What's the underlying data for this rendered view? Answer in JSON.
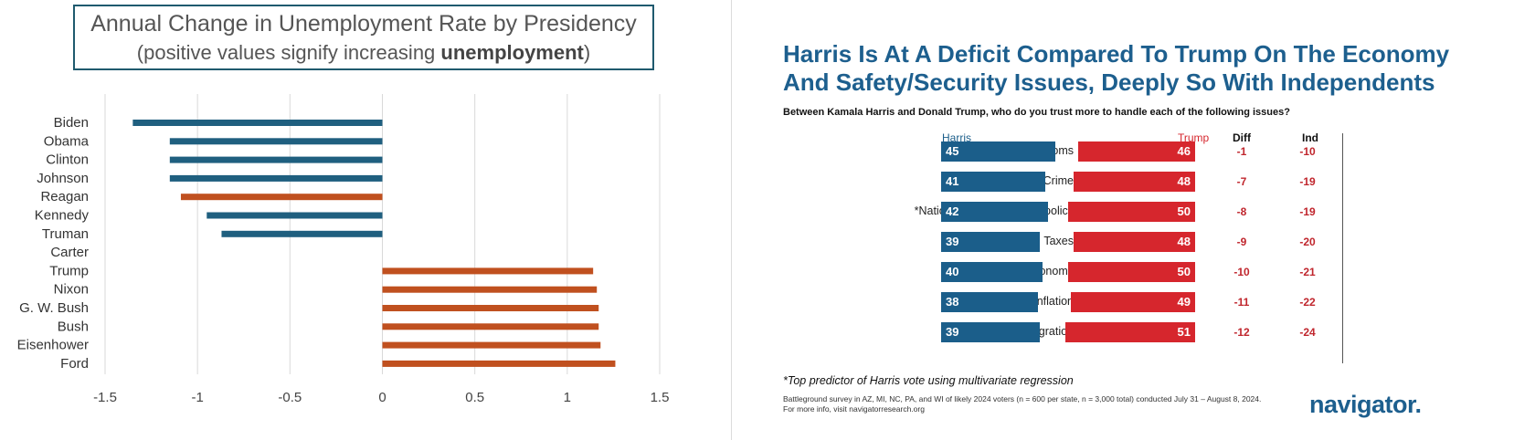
{
  "chart_data": [
    {
      "type": "bar",
      "orientation": "horizontal",
      "title": "Annual Change in Unemployment Rate by Presidency",
      "subtitle_prefix": "(positive values signify increasing ",
      "subtitle_emphasis": "unemployment",
      "subtitle_suffix": ")",
      "categories": [
        "Biden",
        "Obama",
        "Clinton",
        "Johnson",
        "Reagan",
        "Kennedy",
        "Truman",
        "Carter",
        "Trump",
        "Nixon",
        "G. W. Bush",
        "Bush",
        "Eisenhower",
        "Ford"
      ],
      "values": [
        -1.35,
        -1.15,
        -1.15,
        -1.15,
        -1.09,
        -0.95,
        -0.87,
        0,
        1.14,
        1.16,
        1.17,
        1.17,
        1.18,
        1.26
      ],
      "parties": [
        "D",
        "D",
        "D",
        "D",
        "R",
        "D",
        "D",
        "D",
        "R",
        "R",
        "R",
        "R",
        "R",
        "R"
      ],
      "party_colors": {
        "D": "#1f5f7f",
        "R": "#c0501f"
      },
      "xlim": [
        -1.5,
        1.5
      ],
      "xticks": [
        -1.5,
        -1,
        -0.5,
        0,
        0.5,
        1,
        1.5
      ],
      "xtick_labels": [
        "-1.5",
        "-1",
        "-0.5",
        "0",
        "0.5",
        "1",
        "1.5"
      ],
      "grid": true,
      "xlabel": "",
      "ylabel": ""
    },
    {
      "type": "bar",
      "orientation": "horizontal",
      "title": "Harris Is At A Deficit Compared To Trump On The Economy And Safety/Security Issues, Deeply So With Independents",
      "question": "Between Kamala Harris and Donald Trump, who do you trust more to handle each of the following issues?",
      "columns": {
        "harris": "Harris",
        "trump": "Trump",
        "diff": "Diff",
        "ind": "Ind"
      },
      "categories": [
        "Our rights and freedoms",
        "Crime",
        "*National security/foreign policy",
        "Taxes",
        "*The economy",
        "Inflation",
        "Immigration"
      ],
      "series": [
        {
          "name": "Harris",
          "color": "#1b5e8a",
          "values": [
            45,
            41,
            42,
            39,
            40,
            38,
            39
          ]
        },
        {
          "name": "Trump",
          "color": "#d6262d",
          "values": [
            46,
            48,
            50,
            48,
            50,
            49,
            51
          ]
        }
      ],
      "diff": [
        "-1",
        "-7",
        "-8",
        "-9",
        "-10",
        "-11",
        "-12"
      ],
      "ind": [
        "-10",
        "-19",
        "-19",
        "-20",
        "-21",
        "-22",
        "-24"
      ],
      "footnote": "*Top predictor of Harris vote using multivariate regression",
      "source_line1": "Battleground survey in AZ, MI, NC, PA, and WI of likely 2024 voters (n = 600 per state, n = 3,000 total) conducted July 31 – August 8, 2024.",
      "source_line2": "For more info, visit navigatorresearch.org",
      "logo": "navigator."
    }
  ]
}
